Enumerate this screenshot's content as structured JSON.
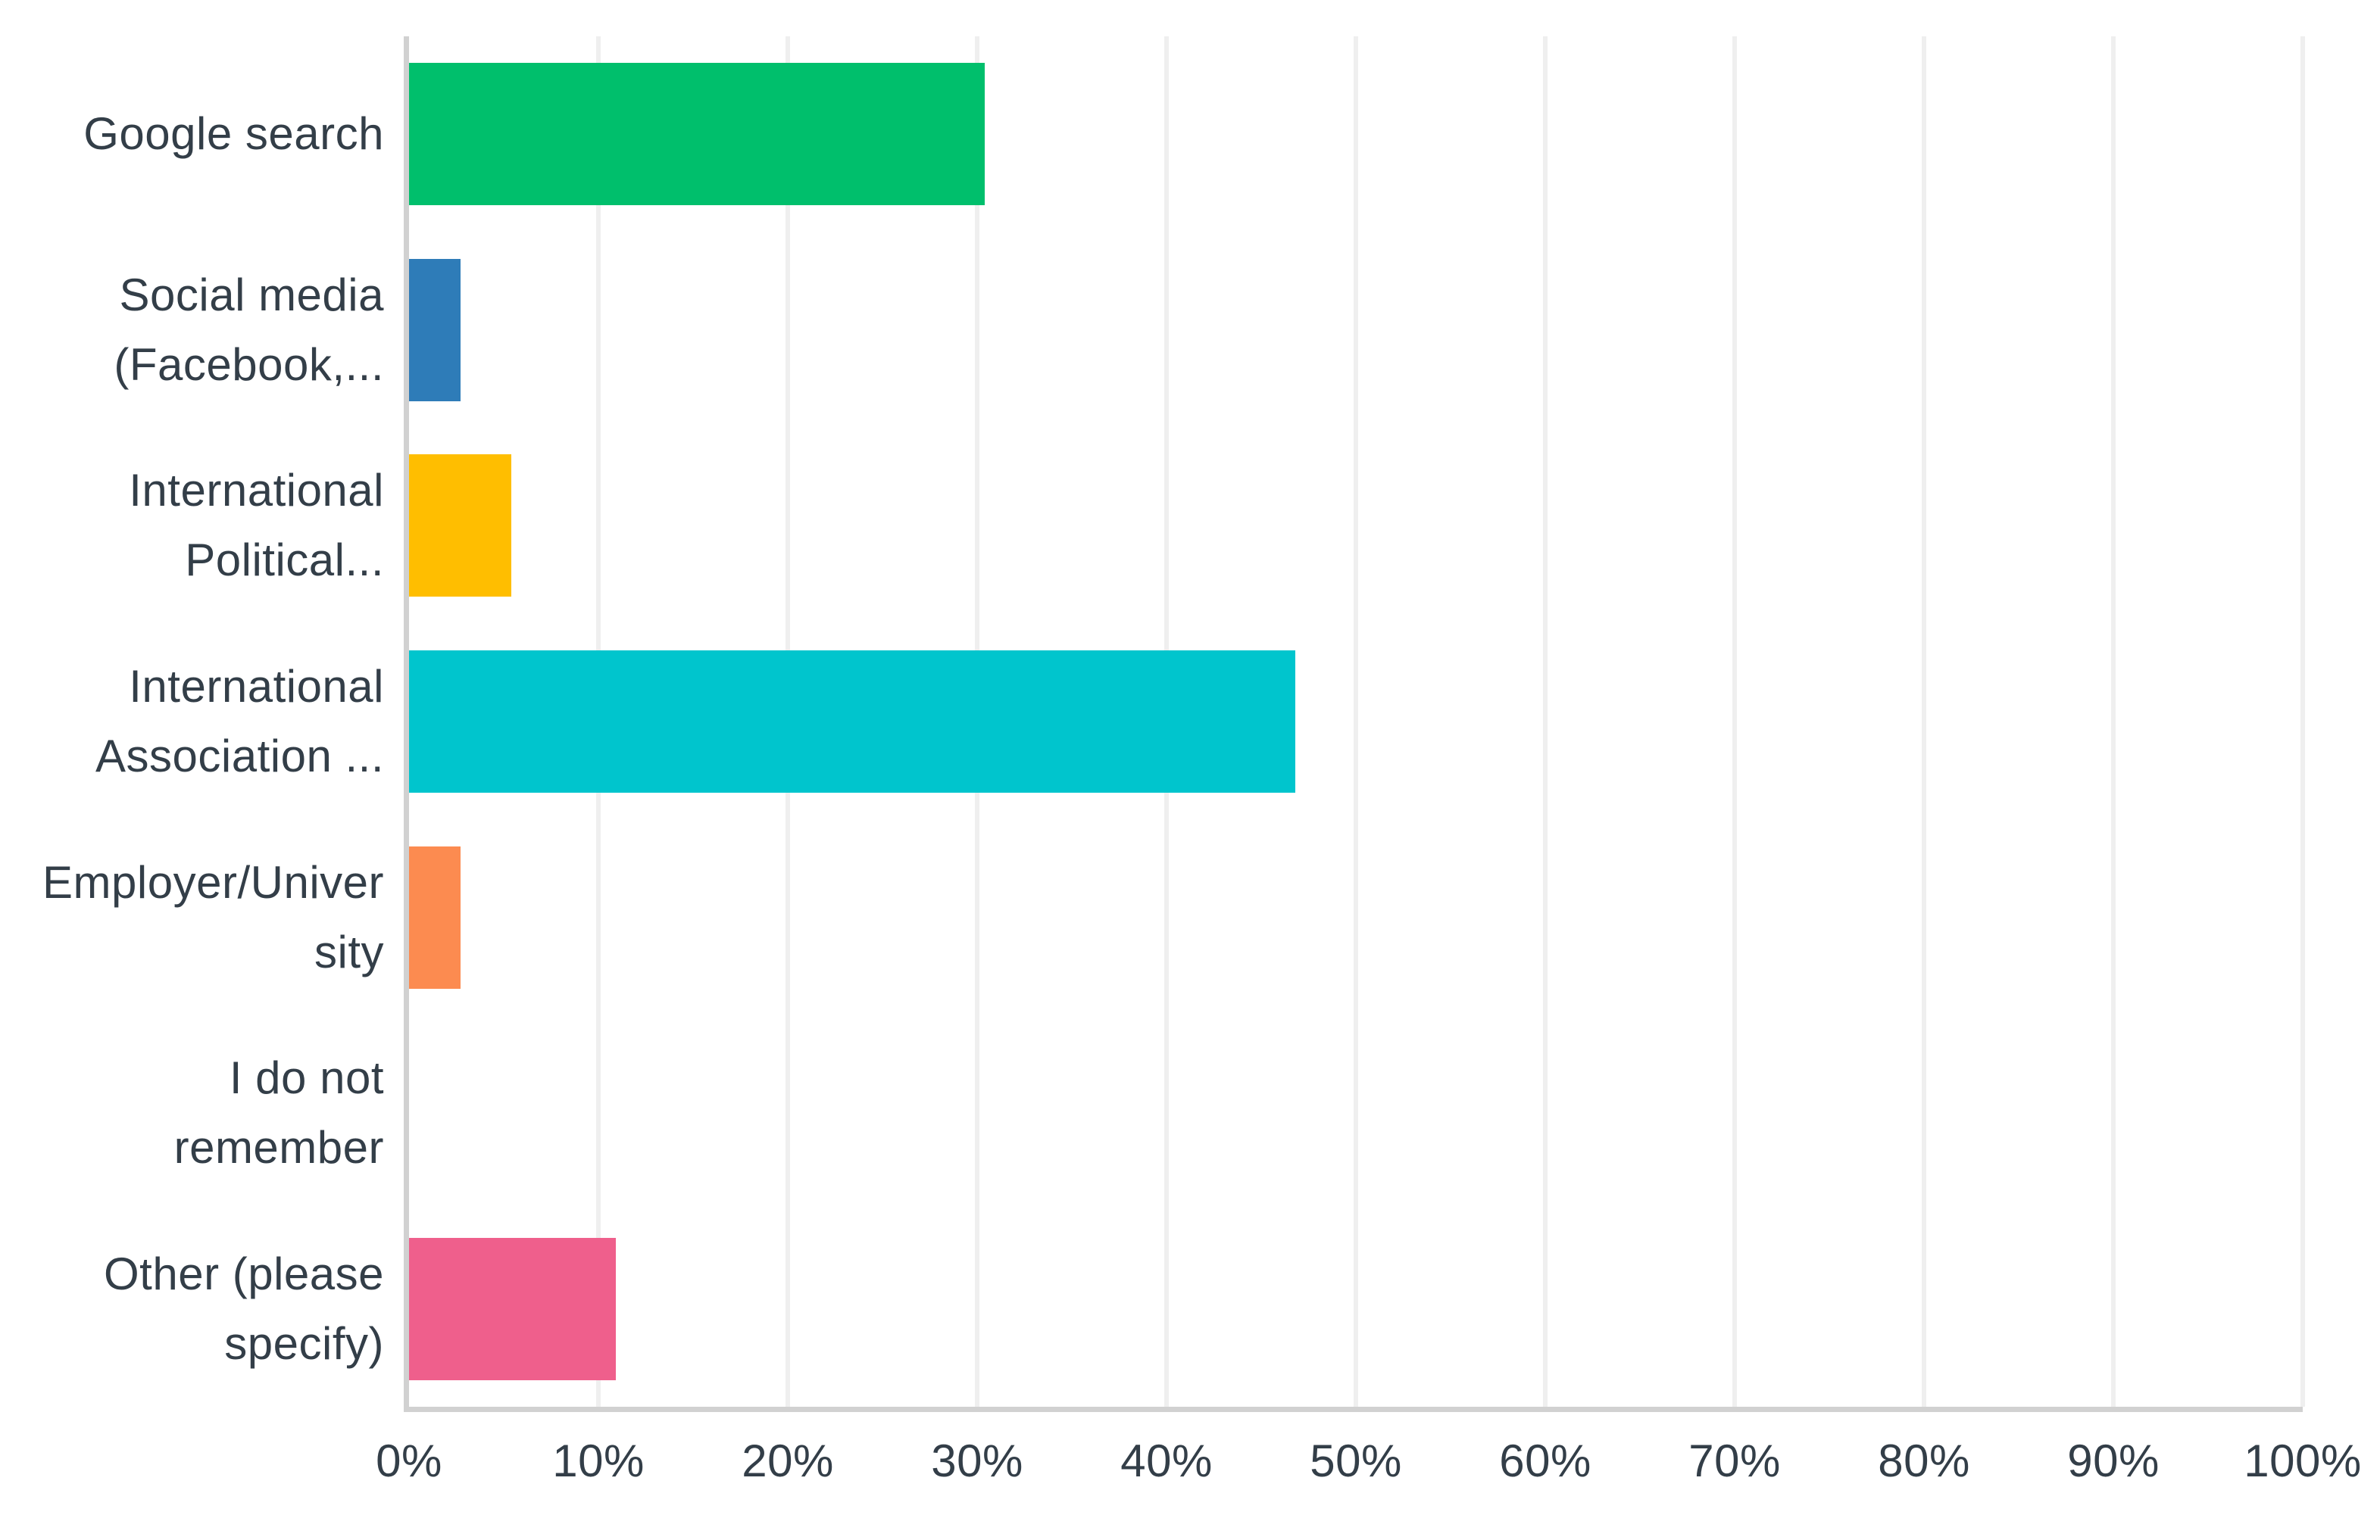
{
  "page": {
    "background": "#FFFFFF"
  },
  "chart_data": {
    "type": "bar",
    "orientation": "horizontal",
    "title": "",
    "xlabel": "",
    "ylabel": "",
    "categories": [
      "Google search",
      "Social media (Facebook,...",
      "International Political...",
      "International Association ...",
      "Employer/University",
      "I do not remember",
      "Other (please specify)"
    ],
    "category_display_lines": [
      [
        "Google search"
      ],
      [
        "Social media",
        "(Facebook,..."
      ],
      [
        "International",
        "Political..."
      ],
      [
        "International",
        "Association ..."
      ],
      [
        "Employer/Univer",
        "sity"
      ],
      [
        "I do not",
        "remember"
      ],
      [
        "Other (please",
        "specify)"
      ]
    ],
    "values": [
      30.4,
      2.7,
      5.4,
      46.8,
      2.7,
      0,
      10.9
    ],
    "unit": "%",
    "bar_colors": [
      "#00BF6C",
      "#2E7CB8",
      "#FFBE00",
      "#00C5CD",
      "#FC8B50",
      null,
      "#EF5F8C"
    ],
    "xlim": [
      0,
      100
    ],
    "x_tick_step": 10,
    "x_ticks": [
      "0%",
      "10%",
      "20%",
      "30%",
      "40%",
      "50%",
      "60%",
      "70%",
      "80%",
      "90%",
      "100%"
    ],
    "grid": "vertical",
    "legend": "none",
    "styles": {
      "text_color": "#333E48",
      "gridline_color": "#EFEFEF",
      "axis_line_color": "#D1D1D1",
      "background": "#FFFFFF"
    }
  }
}
